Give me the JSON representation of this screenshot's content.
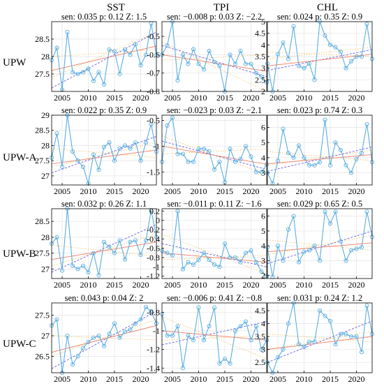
{
  "figure": {
    "col_titles": [
      "SST",
      "TPI",
      "CHL"
    ],
    "row_labels": [
      "UPW",
      "UPW-A",
      "UPW-B",
      "UPW-C"
    ],
    "colors": {
      "series": "#5aaee0",
      "sen_trend": "#f08a74",
      "dashed_trend": "#6a5de6",
      "dotted_band": "#f0c46a",
      "grid": "#e3e3e3",
      "axis": "#000000"
    }
  },
  "chart_data": [
    {
      "type": "line",
      "row": "UPW",
      "column": "SST",
      "stats": "sen: 0.035  p: 0.12  Z: 1.5",
      "ylim": [
        27.0,
        29.0
      ],
      "yticks": [
        27.5,
        28,
        28.5
      ],
      "xlim": [
        2003,
        2023
      ],
      "xticks": [
        2005,
        2010,
        2015,
        2020
      ],
      "x": [
        2003,
        2004,
        2005,
        2006,
        2007,
        2008,
        2009,
        2010,
        2011,
        2012,
        2013,
        2014,
        2015,
        2016,
        2017,
        2018,
        2019,
        2020,
        2021,
        2022,
        2023
      ],
      "series": [
        {
          "values": [
            27.9,
            28.25,
            27.05,
            28.7,
            27.55,
            27.5,
            27.55,
            27.65,
            27.3,
            27.55,
            27.2,
            28.2,
            28.15,
            27.5,
            28.2,
            28.05,
            28.35,
            27.75,
            28.05,
            28.95,
            28.05
          ]
        }
      ],
      "sen_line": [
        27.6,
        28.3
      ],
      "dashed_line": [
        27.1,
        28.7
      ],
      "dotted_lines": [
        [
          28.0,
          28.2
        ],
        [
          27.4,
          28.7
        ]
      ]
    },
    {
      "type": "line",
      "row": "UPW",
      "column": "TPI",
      "stats": "sen: −0.008  p: 0.03  Z: −2.2",
      "ylim": [
        -0.8,
        -0.42
      ],
      "yticks": [
        -0.5,
        -0.6,
        -0.7,
        -0.8
      ],
      "yticklabels": [
        "-0.5",
        "-0.6",
        "-0.7",
        "-0.8"
      ],
      "xlim": [
        2003,
        2023
      ],
      "xticks": [
        2005,
        2010,
        2015,
        2020
      ],
      "x": [
        2003,
        2004,
        2005,
        2006,
        2007,
        2008,
        2009,
        2010,
        2011,
        2012,
        2013,
        2014,
        2015,
        2016,
        2017,
        2018,
        2019,
        2020,
        2021,
        2022,
        2023
      ],
      "series": [
        {
          "values": [
            -0.6,
            -0.55,
            -0.42,
            -0.74,
            -0.6,
            -0.65,
            -0.57,
            -0.65,
            -0.68,
            -0.58,
            -0.64,
            -0.66,
            -0.8,
            -0.6,
            -0.65,
            -0.58,
            -0.65,
            -0.65,
            -0.7,
            -0.72,
            -0.75
          ]
        }
      ],
      "sen_line": [
        -0.6,
        -0.69
      ],
      "dashed_line": [
        -0.55,
        -0.72
      ],
      "dotted_lines": [
        [
          -0.53,
          -0.8
        ],
        [
          -0.63,
          -0.6
        ]
      ]
    },
    {
      "type": "line",
      "row": "UPW",
      "column": "CHL",
      "stats": "sen: 0.024  p: 0.35  Z: 0.9",
      "ylim": [
        2.0,
        5.0
      ],
      "yticks": [
        2,
        2.5,
        3,
        3.5,
        4,
        4.5,
        5
      ],
      "xlim": [
        2003,
        2023
      ],
      "xticks": [
        2005,
        2010,
        2015,
        2020
      ],
      "x": [
        2003,
        2004,
        2005,
        2006,
        2007,
        2008,
        2009,
        2010,
        2011,
        2012,
        2013,
        2014,
        2015,
        2016,
        2017,
        2018,
        2019,
        2020,
        2021,
        2022,
        2023
      ],
      "series": [
        {
          "values": [
            3.2,
            2.0,
            3.6,
            4.1,
            3.4,
            4.8,
            3.1,
            3.0,
            3.2,
            2.5,
            5.0,
            4.4,
            4.0,
            3.9,
            3.7,
            3.0,
            3.3,
            3.5,
            3.5,
            4.9,
            3.4
          ]
        }
      ],
      "sen_line": [
        3.1,
        3.6
      ],
      "dashed_line": [
        2.9,
        3.8
      ],
      "dotted_lines": [
        [
          3.7,
          3.5
        ],
        [
          3.4,
          3.9
        ]
      ]
    },
    {
      "type": "line",
      "row": "UPW-A",
      "column": "SST",
      "stats": "sen: 0.022  p: 0.35  Z: 0.9",
      "ylim": [
        26.7,
        29.0
      ],
      "yticks": [
        27,
        27.5,
        28,
        28.5,
        29
      ],
      "xlim": [
        2003,
        2023
      ],
      "xticks": [
        2005,
        2010,
        2015,
        2020
      ],
      "x": [
        2003,
        2004,
        2005,
        2006,
        2007,
        2008,
        2009,
        2010,
        2011,
        2012,
        2013,
        2014,
        2015,
        2016,
        2017,
        2018,
        2019,
        2020,
        2021,
        2022,
        2023
      ],
      "series": [
        {
          "values": [
            27.6,
            28.4,
            27.3,
            29.0,
            27.8,
            27.5,
            27.3,
            26.75,
            27.7,
            27.2,
            27.95,
            28.1,
            27.5,
            27.9,
            28.0,
            27.9,
            28.1,
            27.5,
            28.1,
            28.7,
            27.8
          ]
        }
      ],
      "sen_line": [
        27.4,
        27.85
      ],
      "dashed_line": [
        27.1,
        28.3
      ],
      "dotted_lines": [
        [
          27.9,
          27.6
        ],
        [
          27.3,
          28.1
        ]
      ]
    },
    {
      "type": "line",
      "row": "UPW-A",
      "column": "TPI",
      "stats": "sen: −0.023  p: 0.03  Z: −2.1",
      "ylim": [
        -1.75,
        -0.4
      ],
      "yticks": [
        -0.5,
        -1,
        -1.5
      ],
      "yticklabels": [
        "-0.5",
        "-1",
        "-1.5"
      ],
      "xlim": [
        2003,
        2023
      ],
      "xticks": [
        2005,
        2010,
        2015,
        2020
      ],
      "x": [
        2003,
        2004,
        2005,
        2006,
        2007,
        2008,
        2009,
        2010,
        2011,
        2012,
        2013,
        2014,
        2015,
        2016,
        2017,
        2018,
        2019,
        2020,
        2021,
        2022,
        2023
      ],
      "series": [
        {
          "values": [
            -1.3,
            -0.6,
            -0.45,
            -1.15,
            -1.15,
            -1.3,
            -1.3,
            -1.05,
            -1.05,
            -1.1,
            -1.45,
            -1.3,
            -1.7,
            -1.05,
            -1.3,
            -1.25,
            -1.0,
            -1.2,
            -1.5,
            -1.5,
            -1.35
          ]
        }
      ],
      "sen_line": [
        -1.0,
        -1.35
      ],
      "dashed_line": [
        -0.9,
        -1.45
      ],
      "dotted_lines": [
        [
          -0.8,
          -1.55
        ],
        [
          -1.15,
          -1.05
        ]
      ]
    },
    {
      "type": "line",
      "row": "UPW-A",
      "column": "CHL",
      "stats": "sen: 0.023  p: 0.74  Z: 0.3",
      "ylim": [
        2.2,
        6.8
      ],
      "yticks": [
        3,
        4,
        5,
        6
      ],
      "xlim": [
        2003,
        2023
      ],
      "xticks": [
        2005,
        2010,
        2015,
        2020
      ],
      "x": [
        2003,
        2004,
        2005,
        2006,
        2007,
        2008,
        2009,
        2010,
        2011,
        2012,
        2013,
        2014,
        2015,
        2016,
        2017,
        2018,
        2019,
        2020,
        2021,
        2022,
        2023
      ],
      "series": [
        {
          "values": [
            3.0,
            2.3,
            3.8,
            5.9,
            4.3,
            4.0,
            4.8,
            4.0,
            3.5,
            3.5,
            3.7,
            6.5,
            3.5,
            5.0,
            4.5,
            3.5,
            3.0,
            3.9,
            4.3,
            6.2,
            3.7
          ]
        }
      ],
      "sen_line": [
        3.6,
        4.2
      ],
      "dashed_line": [
        3.1,
        4.7
      ],
      "dotted_lines": [
        [
          4.4,
          3.8
        ],
        [
          3.5,
          4.5
        ]
      ]
    },
    {
      "type": "line",
      "row": "UPW-B",
      "column": "SST",
      "stats": "sen: 0.032  p: 0.26  Z: 1.1",
      "ylim": [
        26.7,
        28.9
      ],
      "yticks": [
        27,
        27.5,
        28,
        28.5
      ],
      "xlim": [
        2003,
        2023
      ],
      "xticks": [
        2005,
        2010,
        2015,
        2020
      ],
      "x": [
        2003,
        2004,
        2005,
        2006,
        2007,
        2008,
        2009,
        2010,
        2011,
        2012,
        2013,
        2014,
        2015,
        2016,
        2017,
        2018,
        2019,
        2020,
        2021,
        2022,
        2023
      ],
      "series": [
        {
          "values": [
            27.8,
            28.0,
            26.95,
            28.9,
            27.1,
            27.0,
            27.1,
            26.9,
            27.5,
            26.8,
            27.85,
            27.7,
            27.5,
            27.9,
            27.3,
            27.85,
            27.9,
            27.45,
            27.9,
            28.85,
            28.0
          ]
        }
      ],
      "sen_line": [
        27.3,
        27.85
      ],
      "dashed_line": [
        26.9,
        28.4
      ],
      "dotted_lines": [
        [
          27.75,
          27.4
        ],
        [
          27.1,
          28.1
        ]
      ]
    },
    {
      "type": "line",
      "row": "UPW-B",
      "column": "TPI",
      "stats": "sen: −0.011  p: 0.11  Z: −1.6",
      "ylim": [
        -1.25,
        0.25
      ],
      "yticks": [
        0.2,
        0,
        -0.2,
        -0.4,
        -0.6,
        -0.8,
        -1,
        -1.2
      ],
      "yticklabels": [
        "0.2",
        "0",
        "-0.2",
        "-0.4",
        "-0.6",
        "-0.8",
        "-1",
        "-1.2"
      ],
      "xlim": [
        2003,
        2023
      ],
      "xticks": [
        2005,
        2010,
        2015,
        2020
      ],
      "x": [
        2003,
        2004,
        2005,
        2006,
        2007,
        2008,
        2009,
        2010,
        2011,
        2012,
        2013,
        2014,
        2015,
        2016,
        2017,
        2018,
        2019,
        2020,
        2021,
        2022,
        2023
      ],
      "series": [
        {
          "values": [
            -0.65,
            -0.7,
            -0.75,
            0.2,
            -1.05,
            -0.9,
            -0.95,
            -0.85,
            -0.7,
            -0.85,
            -0.95,
            -1.0,
            -0.5,
            -0.8,
            -0.8,
            -0.9,
            -0.7,
            -0.65,
            -0.9,
            -1.1,
            -1.2
          ]
        }
      ],
      "sen_line": [
        -0.7,
        -0.9
      ],
      "dashed_line": [
        -0.5,
        -1.0
      ],
      "dotted_lines": [
        [
          -0.3,
          -1.15
        ],
        [
          -0.85,
          -0.75
        ]
      ]
    },
    {
      "type": "line",
      "row": "UPW-B",
      "column": "CHL",
      "stats": "sen: 0.029  p: 0.65  Z: 0.5",
      "ylim": [
        1.8,
        6.5
      ],
      "yticks": [
        2,
        3,
        4,
        5,
        6
      ],
      "xlim": [
        2003,
        2023
      ],
      "xticks": [
        2005,
        2010,
        2015,
        2020
      ],
      "x": [
        2003,
        2004,
        2005,
        2006,
        2007,
        2008,
        2009,
        2010,
        2011,
        2012,
        2013,
        2014,
        2015,
        2016,
        2017,
        2018,
        2019,
        2020,
        2021,
        2022,
        2023
      ],
      "series": [
        {
          "values": [
            3.9,
            1.9,
            4.0,
            3.0,
            5.1,
            6.0,
            2.9,
            3.6,
            3.7,
            4.0,
            3.0,
            6.3,
            5.5,
            6.3,
            4.3,
            3.0,
            3.7,
            3.8,
            3.9,
            6.3,
            4.6
          ]
        }
      ],
      "sen_line": [
        3.6,
        4.2
      ],
      "dashed_line": [
        2.8,
        5.0
      ],
      "dotted_lines": [
        [
          4.4,
          3.7
        ],
        [
          3.4,
          4.7
        ]
      ]
    },
    {
      "type": "line",
      "row": "UPW-C",
      "column": "SST",
      "stats": "sen: 0.043  p: 0.04  Z: 2",
      "ylim": [
        26.1,
        27.8
      ],
      "yticks": [
        26.5,
        27,
        27.5
      ],
      "xlim": [
        2003,
        2023
      ],
      "xticks": [
        2005,
        2010,
        2015,
        2020
      ],
      "x": [
        2003,
        2004,
        2005,
        2006,
        2007,
        2008,
        2009,
        2010,
        2011,
        2012,
        2013,
        2014,
        2015,
        2016,
        2017,
        2018,
        2019,
        2020,
        2021,
        2022,
        2023
      ],
      "series": [
        {
          "values": [
            27.25,
            27.4,
            26.1,
            27.0,
            26.3,
            26.5,
            26.7,
            26.85,
            26.95,
            27.0,
            26.75,
            27.05,
            27.3,
            26.95,
            27.1,
            27.15,
            27.3,
            27.4,
            27.7,
            27.6,
            27.3
          ]
        }
      ],
      "sen_line": [
        26.6,
        27.25
      ],
      "dashed_line": [
        26.2,
        27.6
      ],
      "dotted_lines": [
        [
          27.0,
          26.9
        ],
        [
          26.5,
          27.4
        ]
      ]
    },
    {
      "type": "line",
      "row": "UPW-C",
      "column": "TPI",
      "stats": "sen: −0.006  p: 0.41  Z: −0.8",
      "ylim": [
        -1.45,
        -0.7
      ],
      "yticks": [
        -0.8,
        -1,
        -1.2,
        -1.4
      ],
      "yticklabels": [
        "-0.8",
        "-1",
        "-1.2",
        "-1.4"
      ],
      "xlim": [
        2003,
        2023
      ],
      "xticks": [
        2005,
        2010,
        2015,
        2020
      ],
      "x": [
        2003,
        2004,
        2005,
        2006,
        2007,
        2008,
        2009,
        2010,
        2011,
        2012,
        2013,
        2014,
        2015,
        2016,
        2017,
        2018,
        2019,
        2020,
        2021,
        2022,
        2023
      ],
      "series": [
        {
          "values": [
            -0.82,
            -1.05,
            -1.05,
            -0.95,
            -1.4,
            -1.05,
            -1.1,
            -0.75,
            -1.1,
            -0.95,
            -0.75,
            -1.35,
            -1.3,
            -1.35,
            -1.0,
            -0.95,
            -0.9,
            -1.1,
            -0.95,
            -1.2,
            -1.1
          ]
        }
      ],
      "sen_line": [
        -1.0,
        -1.1
      ],
      "dashed_line": [
        -1.15,
        -0.9
      ],
      "dotted_lines": [
        [
          -0.85,
          -1.3
        ],
        [
          -1.1,
          -1.05
        ]
      ]
    },
    {
      "type": "line",
      "row": "UPW-C",
      "column": "CHL",
      "stats": "sen: 0.031  p: 0.24  Z: 1.2",
      "ylim": [
        2.1,
        4.8
      ],
      "yticks": [
        2.5,
        3,
        3.5,
        4,
        4.5
      ],
      "xlim": [
        2003,
        2023
      ],
      "xticks": [
        2005,
        2010,
        2015,
        2020
      ],
      "x": [
        2003,
        2004,
        2005,
        2006,
        2007,
        2008,
        2009,
        2010,
        2011,
        2012,
        2013,
        2014,
        2015,
        2016,
        2017,
        2018,
        2019,
        2020,
        2021,
        2022,
        2023
      ],
      "series": [
        {
          "values": [
            2.5,
            2.1,
            2.7,
            3.0,
            4.0,
            4.8,
            3.2,
            3.1,
            3.3,
            3.3,
            4.5,
            4.3,
            4.1,
            3.2,
            3.6,
            3.6,
            3.5,
            3.5,
            2.9,
            4.7,
            3.6
          ]
        }
      ],
      "sen_line": [
        3.0,
        3.5
      ],
      "dashed_line": [
        2.5,
        4.1
      ],
      "dotted_lines": [
        [
          3.6,
          3.3
        ],
        [
          3.0,
          3.7
        ]
      ]
    }
  ]
}
